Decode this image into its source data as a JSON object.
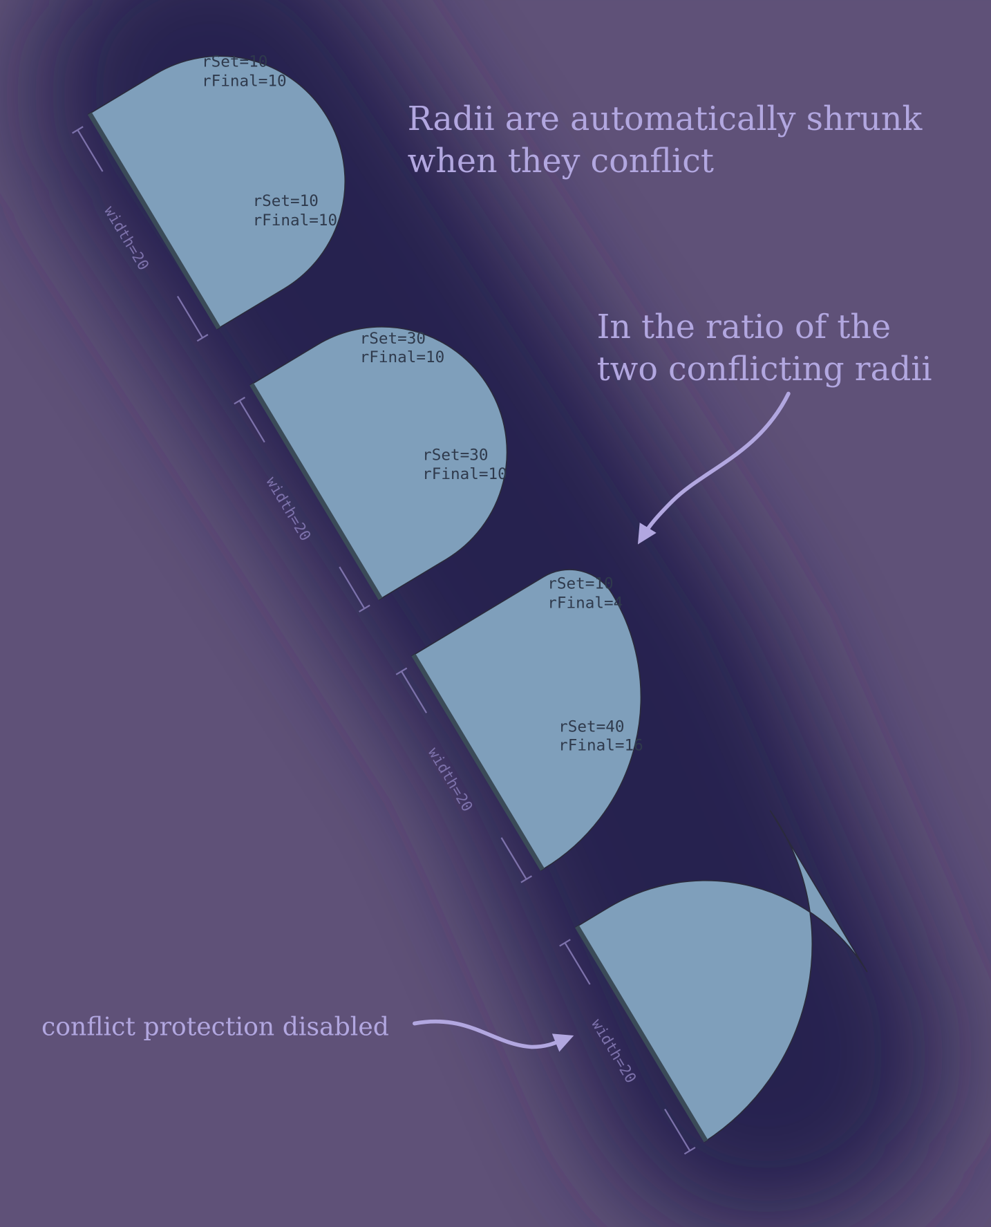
{
  "notes": {
    "title_line1": "Radii are automatically shrunk",
    "title_line2": "when they conflict",
    "ratio_line1": "In the ratio of the",
    "ratio_line2": "two conflicting radii",
    "disabled": "conflict protection disabled"
  },
  "shapes": [
    {
      "width_label": "width=20",
      "top": {
        "set": "rSet=10",
        "final": "rFinal=10"
      },
      "bottom": {
        "set": "rSet=10",
        "final": "rFinal=10"
      }
    },
    {
      "width_label": "width=20",
      "top": {
        "set": "rSet=30",
        "final": "rFinal=10"
      },
      "bottom": {
        "set": "rSet=30",
        "final": "rFinal=10"
      }
    },
    {
      "width_label": "width=20",
      "top": {
        "set": "rSet=10",
        "final": "rFinal=4"
      },
      "bottom": {
        "set": "rSet=40",
        "final": "rFinal=16"
      }
    },
    {
      "width_label": "width=20"
    }
  ],
  "colors": {
    "background": "#5f5178",
    "shadow": "#25204f",
    "shape": "#7f9fbb",
    "accent_text": "#b2a7e0"
  }
}
